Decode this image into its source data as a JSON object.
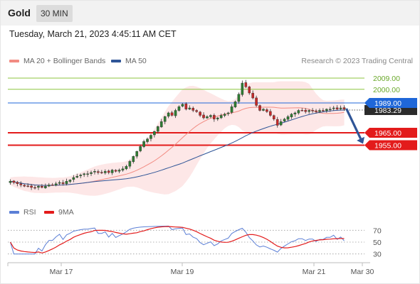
{
  "header": {
    "symbol": "Gold",
    "timeframe": "30 MIN"
  },
  "timestamp": "Tuesday, March 21, 2023 4:45:11 AM CET",
  "legend": {
    "ma20": {
      "label": "MA 20 + Bollinger Bands",
      "color": "#f28b82"
    },
    "ma50": {
      "label": "MA 50",
      "color": "#2f5597"
    }
  },
  "credit": "Research © 2023 Trading Central",
  "rsi_legend": {
    "rsi": {
      "label": "RSI",
      "color": "#5b7fd6"
    },
    "ma9": {
      "label": "9MA",
      "color": "#e31b1b"
    }
  },
  "chart_data": [
    {
      "type": "candlestick",
      "price_axis": {
        "min": 1913,
        "max": 2017
      },
      "levels": [
        {
          "value": 2009.0,
          "label": "2009.00",
          "style": "resistance",
          "color": "#8cc63f"
        },
        {
          "value": 2000.0,
          "label": "2000.00",
          "style": "resistance",
          "color": "#8cc63f"
        },
        {
          "value": 1989.0,
          "label": "1989.00",
          "style": "pivot",
          "color": "#1f67d8"
        },
        {
          "value": 1965.0,
          "label": "1965.00",
          "style": "support",
          "color": "#e31b1b"
        },
        {
          "value": 1955.0,
          "label": "1955.00",
          "style": "support",
          "color": "#e31b1b"
        }
      ],
      "last_price": {
        "value": 1983.29,
        "label": "1983.29"
      },
      "close": [
        1926,
        1925,
        1924,
        1923,
        1922,
        1922,
        1921,
        1921,
        1922,
        1921,
        1922,
        1923,
        1923,
        1924,
        1925,
        1924,
        1926,
        1927,
        1929,
        1930,
        1931,
        1932,
        1932,
        1933,
        1934,
        1933,
        1933,
        1934,
        1933,
        1935,
        1934,
        1935,
        1936,
        1938,
        1942,
        1946,
        1950,
        1954,
        1958,
        1960,
        1963,
        1966,
        1970,
        1974,
        1978,
        1981,
        1979,
        1983,
        1986,
        1988,
        1984,
        1985,
        1983,
        1982,
        1979,
        1977,
        1978,
        1979,
        1976,
        1977,
        1979,
        1980,
        1981,
        1986,
        1990,
        1996,
        2005,
        2002,
        1997,
        1993,
        1987,
        1983,
        1984,
        1982,
        1979,
        1976,
        1971,
        1974,
        1976,
        1978,
        1980,
        1981,
        1983,
        1983,
        1982,
        1983,
        1983,
        1982,
        1983,
        1983,
        1984,
        1984,
        1985,
        1984,
        1985,
        1984
      ],
      "arrow_direction": "down",
      "x_ticks": [
        "Mar 17",
        "Mar 19",
        "Mar 21",
        "Mar 30"
      ]
    },
    {
      "type": "line",
      "name": "RSI",
      "ticks": [
        70,
        50,
        30
      ],
      "ylim": [
        20,
        80
      ]
    }
  ]
}
